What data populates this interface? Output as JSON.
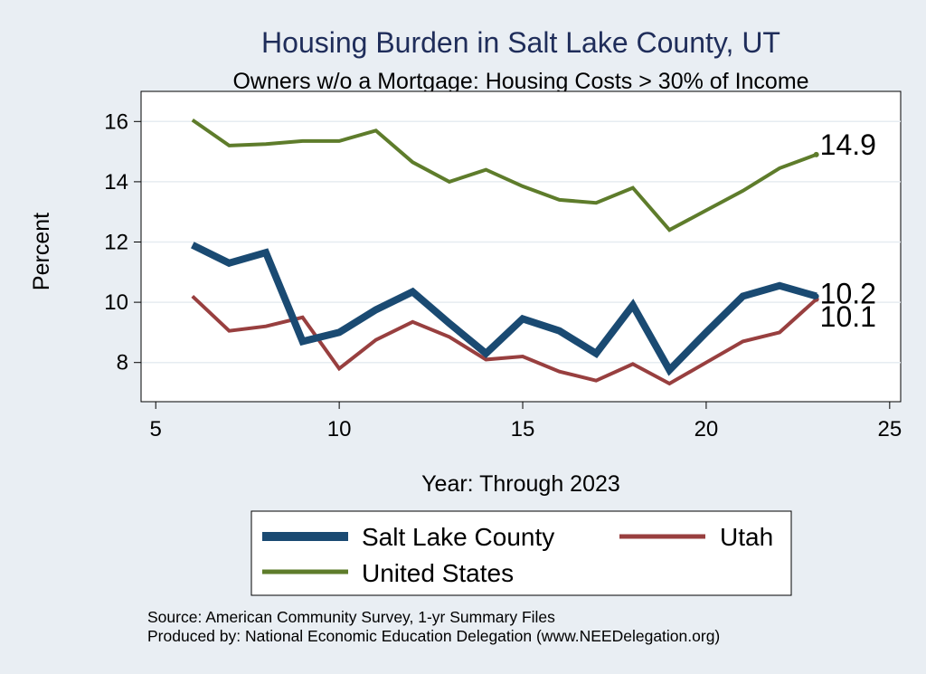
{
  "chart_data": {
    "type": "line",
    "title": "Housing Burden in Salt Lake County, UT",
    "subtitle": "Owners w/o a Mortgage: Housing Costs > 30% of Income",
    "xlabel": "Year: Through 2023",
    "ylabel": "Percent",
    "xlim": [
      4.6,
      25.3
    ],
    "ylim": [
      6.7,
      17.0
    ],
    "xticks": [
      5,
      10,
      15,
      20,
      25
    ],
    "yticks": [
      8,
      10,
      12,
      14,
      16
    ],
    "grid": true,
    "legend_position": "bottom",
    "x": [
      6,
      7,
      8,
      9,
      10,
      11,
      12,
      13,
      14,
      15,
      16,
      17,
      18,
      19,
      20,
      21,
      22,
      23
    ],
    "series": [
      {
        "name": "Salt Lake County",
        "color": "#1a4a72",
        "values": [
          11.9,
          11.3,
          11.65,
          8.7,
          9.0,
          9.75,
          10.35,
          9.3,
          8.3,
          9.45,
          9.05,
          8.3,
          9.9,
          7.75,
          9.0,
          10.2,
          10.55,
          10.2
        ],
        "end_label": "10.2"
      },
      {
        "name": "Utah",
        "color": "#983f3f",
        "values": [
          10.2,
          9.05,
          9.2,
          9.5,
          7.8,
          8.75,
          9.35,
          8.85,
          8.1,
          8.2,
          7.7,
          7.4,
          7.95,
          7.3,
          8.0,
          8.7,
          9.0,
          10.1
        ],
        "end_label": "10.1"
      },
      {
        "name": "United States",
        "color": "#5e7c2b",
        "values": [
          16.05,
          15.2,
          15.25,
          15.35,
          15.35,
          15.7,
          14.65,
          14.0,
          14.4,
          13.85,
          13.4,
          13.3,
          13.8,
          12.4,
          13.05,
          13.7,
          14.45,
          14.9
        ],
        "end_label": "14.9"
      }
    ],
    "notes": [
      "Source: American Community Survey, 1-yr Summary Files",
      "Produced by: National Economic Education Delegation (www.NEEDelegation.org)"
    ]
  }
}
